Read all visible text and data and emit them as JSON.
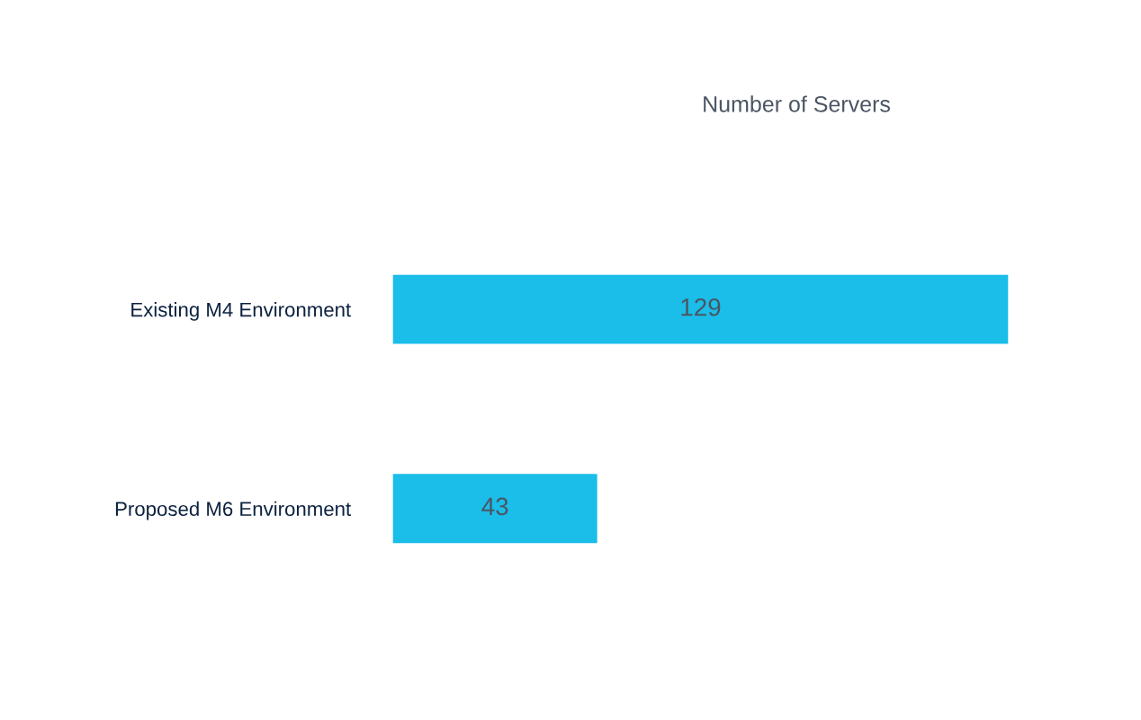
{
  "chart_data": {
    "type": "bar",
    "orientation": "horizontal",
    "title": "Number of Servers",
    "categories": [
      "Existing M4 Environment",
      "Proposed M6 Environment"
    ],
    "values": [
      129,
      43
    ],
    "color": "#1bbde9",
    "data_labels": true,
    "grid": false,
    "legend": false
  }
}
